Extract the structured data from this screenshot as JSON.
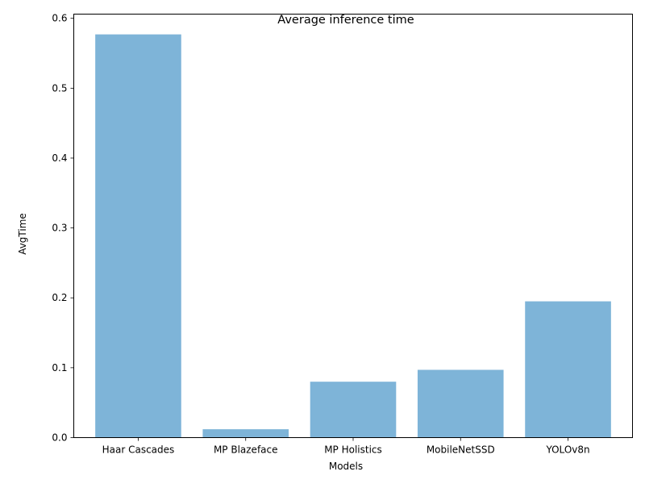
{
  "chart_data": {
    "type": "bar",
    "title": "Average inference time",
    "xlabel": "Models",
    "ylabel": "AvgTime",
    "categories": [
      "Haar Cascades",
      "MP Blazeface",
      "MP Holistics",
      "MobileNetSSD",
      "YOLOv8n"
    ],
    "values": [
      0.577,
      0.012,
      0.08,
      0.097,
      0.195
    ],
    "ylim": [
      0,
      0.606
    ],
    "yticks": [
      "0.0",
      "0.1",
      "0.2",
      "0.3",
      "0.4",
      "0.5",
      "0.6"
    ],
    "grid": false,
    "bar_color": "#7eb4d8"
  }
}
